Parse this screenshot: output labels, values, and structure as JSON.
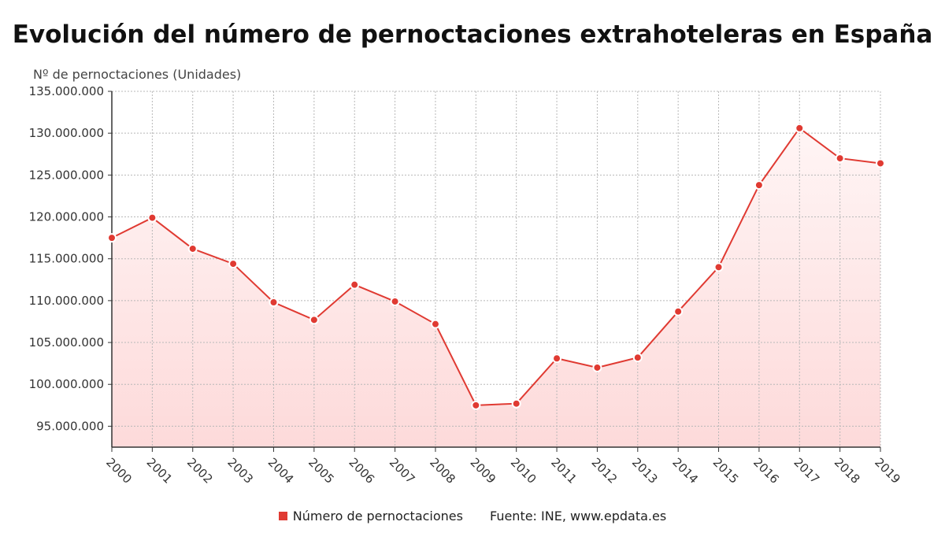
{
  "colors": {
    "line": "#e03a32",
    "area_top": "#fff5f5",
    "area_bottom": "#fddada",
    "grid": "#b8b8b8",
    "axis": "#333333"
  },
  "legend": {
    "series_label": "Número de pernoctaciones",
    "source": "Fuente: INE, www.epdata.es"
  },
  "chart_data": {
    "type": "area",
    "title": "Evolución del número de pernoctaciones extrahoteleras en España",
    "ylabel": "Nº de pernoctaciones (Unidades)",
    "xlabel": "",
    "categories": [
      "2000",
      "2001",
      "2002",
      "2003",
      "2004",
      "2005",
      "2006",
      "2007",
      "2008",
      "2009",
      "2010",
      "2011",
      "2012",
      "2013",
      "2014",
      "2015",
      "2016",
      "2017",
      "2018",
      "2019"
    ],
    "series": [
      {
        "name": "Número de pernoctaciones",
        "values": [
          117500000,
          119900000,
          116200000,
          114400000,
          109800000,
          107700000,
          111900000,
          109900000,
          107200000,
          97500000,
          97700000,
          103100000,
          102000000,
          103200000,
          108700000,
          114000000,
          123800000,
          130600000,
          127000000,
          126400000
        ]
      }
    ],
    "ylim": [
      92500000,
      135000000
    ],
    "yticks": [
      95000000,
      100000000,
      105000000,
      110000000,
      115000000,
      120000000,
      125000000,
      130000000,
      135000000
    ],
    "ytick_labels": [
      "95.000.000",
      "100.000.000",
      "105.000.000",
      "110.000.000",
      "115.000.000",
      "120.000.000",
      "125.000.000",
      "130.000.000",
      "135.000.000"
    ],
    "grid": true,
    "legend_position": "bottom"
  }
}
